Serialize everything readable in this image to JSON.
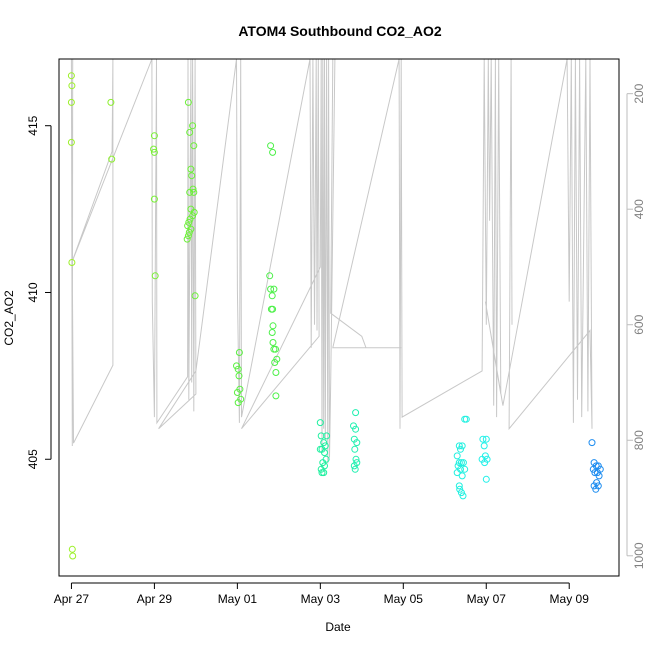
{
  "chart_data": {
    "type": "scatter",
    "title": "ATOM4 Southbound CO2_AO2",
    "xlabel": "Date",
    "ylabel": "CO2_AO2",
    "xlim": [
      -0.3,
      13.2
    ],
    "ylim": [
      401.5,
      417.0
    ],
    "x_ticks": [
      {
        "value": 0,
        "label": "Apr 27"
      },
      {
        "value": 2,
        "label": "Apr 29"
      },
      {
        "value": 4,
        "label": "May 01"
      },
      {
        "value": 6,
        "label": "May 03"
      },
      {
        "value": 8,
        "label": "May 05"
      },
      {
        "value": 10,
        "label": "May 07"
      },
      {
        "value": 12,
        "label": "May 09"
      }
    ],
    "y_ticks": [
      405,
      410,
      415
    ],
    "right_axis": {
      "label": "",
      "lim": [
        1035,
        140
      ],
      "ticks": [
        200,
        400,
        600,
        800,
        1000
      ],
      "color": "#bebebe"
    },
    "profile_line_color": "#c8c8c8",
    "profile_line": [
      [
        0.0,
        140
      ],
      [
        0.01,
        505
      ],
      [
        0.02,
        810
      ],
      [
        0.03,
        140
      ],
      [
        0.02,
        505
      ],
      [
        0.05,
        805
      ],
      [
        1.0,
        670
      ],
      [
        1.0,
        140
      ],
      [
        0.98,
        300
      ],
      [
        0.02,
        490
      ],
      [
        1.94,
        140
      ],
      [
        1.95,
        560
      ],
      [
        2.0,
        760
      ],
      [
        2.05,
        140
      ],
      [
        2.06,
        770
      ],
      [
        2.8,
        690
      ],
      [
        2.81,
        140
      ],
      [
        2.83,
        730
      ],
      [
        2.88,
        140
      ],
      [
        2.9,
        700
      ],
      [
        2.92,
        140
      ],
      [
        2.95,
        750
      ],
      [
        2.98,
        140
      ],
      [
        3.0,
        720
      ],
      [
        2.1,
        780
      ],
      [
        3.0,
        680
      ],
      [
        3.98,
        140
      ],
      [
        4.0,
        540
      ],
      [
        4.05,
        770
      ],
      [
        4.08,
        140
      ],
      [
        4.1,
        760
      ],
      [
        5.75,
        140
      ],
      [
        5.78,
        640
      ],
      [
        5.82,
        140
      ],
      [
        5.86,
        600
      ],
      [
        5.9,
        140
      ],
      [
        5.92,
        610
      ],
      [
        5.95,
        140
      ],
      [
        5.97,
        620
      ],
      [
        4.1,
        780
      ],
      [
        6.0,
        500
      ],
      [
        6.02,
        140
      ],
      [
        6.04,
        820
      ],
      [
        6.06,
        140
      ],
      [
        6.08,
        780
      ],
      [
        6.1,
        140
      ],
      [
        6.12,
        800
      ],
      [
        6.15,
        140
      ],
      [
        6.18,
        840
      ],
      [
        6.2,
        140
      ],
      [
        6.22,
        830
      ],
      [
        6.25,
        700
      ],
      [
        6.35,
        140
      ],
      [
        6.3,
        140
      ],
      [
        6.25,
        580
      ],
      [
        7.0,
        620
      ],
      [
        7.1,
        640
      ],
      [
        7.95,
        640
      ],
      [
        6.3,
        640
      ],
      [
        7.9,
        140
      ],
      [
        7.92,
        780
      ],
      [
        7.95,
        140
      ],
      [
        7.97,
        760
      ],
      [
        9.9,
        680
      ],
      [
        9.95,
        140
      ],
      [
        10.0,
        600
      ],
      [
        10.05,
        140
      ],
      [
        10.08,
        420
      ],
      [
        10.12,
        140
      ],
      [
        10.18,
        740
      ],
      [
        10.22,
        140
      ],
      [
        10.25,
        760
      ],
      [
        10.3,
        140
      ],
      [
        10.35,
        720
      ],
      [
        9.98,
        560
      ],
      [
        10.4,
        740
      ],
      [
        11.95,
        140
      ],
      [
        12.0,
        560
      ],
      [
        12.05,
        140
      ],
      [
        12.1,
        770
      ],
      [
        12.15,
        140
      ],
      [
        12.2,
        730
      ],
      [
        12.25,
        140
      ],
      [
        12.3,
        760
      ],
      [
        12.4,
        140
      ],
      [
        12.45,
        750
      ],
      [
        12.5,
        140
      ],
      [
        12.55,
        780
      ],
      [
        12.5,
        610
      ],
      [
        10.55,
        780
      ],
      [
        10.6,
        140
      ],
      [
        10.62,
        600
      ]
    ],
    "series": [
      {
        "name": "points",
        "points": [
          {
            "x": 0.0,
            "y": 416.5,
            "c": "#9cf028"
          },
          {
            "x": 0.01,
            "y": 416.2,
            "c": "#9cf028"
          },
          {
            "x": 0.0,
            "y": 415.7,
            "c": "#9cf028"
          },
          {
            "x": 0.0,
            "y": 414.5,
            "c": "#9cf028"
          },
          {
            "x": 0.01,
            "y": 410.9,
            "c": "#9cf028"
          },
          {
            "x": 0.02,
            "y": 402.3,
            "c": "#9cf028"
          },
          {
            "x": 0.03,
            "y": 402.1,
            "c": "#9cf028"
          },
          {
            "x": 0.95,
            "y": 415.7,
            "c": "#8cf02c"
          },
          {
            "x": 0.97,
            "y": 414.0,
            "c": "#8cf02c"
          },
          {
            "x": 2.0,
            "y": 414.7,
            "c": "#78f034"
          },
          {
            "x": 1.98,
            "y": 414.3,
            "c": "#78f034"
          },
          {
            "x": 2.0,
            "y": 414.2,
            "c": "#78f034"
          },
          {
            "x": 2.0,
            "y": 412.8,
            "c": "#78f034"
          },
          {
            "x": 2.02,
            "y": 410.5,
            "c": "#78f034"
          },
          {
            "x": 2.82,
            "y": 415.7,
            "c": "#6cf038"
          },
          {
            "x": 2.85,
            "y": 414.8,
            "c": "#6cf038"
          },
          {
            "x": 2.92,
            "y": 415.0,
            "c": "#6cf038"
          },
          {
            "x": 2.95,
            "y": 414.4,
            "c": "#6cf038"
          },
          {
            "x": 2.88,
            "y": 413.7,
            "c": "#6cf038"
          },
          {
            "x": 2.9,
            "y": 413.5,
            "c": "#6cf038"
          },
          {
            "x": 2.85,
            "y": 413.0,
            "c": "#6cf038"
          },
          {
            "x": 2.93,
            "y": 413.1,
            "c": "#6cf038"
          },
          {
            "x": 2.95,
            "y": 413.0,
            "c": "#6cf038"
          },
          {
            "x": 2.88,
            "y": 412.5,
            "c": "#6cf038"
          },
          {
            "x": 2.92,
            "y": 412.3,
            "c": "#6cf038"
          },
          {
            "x": 2.96,
            "y": 412.4,
            "c": "#6cf038"
          },
          {
            "x": 2.86,
            "y": 412.2,
            "c": "#6cf038"
          },
          {
            "x": 2.8,
            "y": 412.0,
            "c": "#6cf038"
          },
          {
            "x": 2.84,
            "y": 411.8,
            "c": "#6cf038"
          },
          {
            "x": 2.82,
            "y": 411.7,
            "c": "#6cf038"
          },
          {
            "x": 2.79,
            "y": 411.6,
            "c": "#6cf038"
          },
          {
            "x": 2.88,
            "y": 411.9,
            "c": "#6cf038"
          },
          {
            "x": 2.83,
            "y": 412.1,
            "c": "#6cf038"
          },
          {
            "x": 2.98,
            "y": 409.9,
            "c": "#6cf038"
          },
          {
            "x": 4.05,
            "y": 408.2,
            "c": "#5af040"
          },
          {
            "x": 3.98,
            "y": 407.8,
            "c": "#5af040"
          },
          {
            "x": 4.02,
            "y": 407.7,
            "c": "#5af040"
          },
          {
            "x": 4.04,
            "y": 407.5,
            "c": "#5af040"
          },
          {
            "x": 4.06,
            "y": 407.1,
            "c": "#5af040"
          },
          {
            "x": 4.0,
            "y": 407.0,
            "c": "#5af040"
          },
          {
            "x": 4.08,
            "y": 406.8,
            "c": "#5af040"
          },
          {
            "x": 4.02,
            "y": 406.7,
            "c": "#5af040"
          },
          {
            "x": 4.8,
            "y": 414.4,
            "c": "#4cf048"
          },
          {
            "x": 4.85,
            "y": 414.2,
            "c": "#4cf048"
          },
          {
            "x": 4.78,
            "y": 410.5,
            "c": "#4cf048"
          },
          {
            "x": 4.8,
            "y": 410.1,
            "c": "#4cf048"
          },
          {
            "x": 4.88,
            "y": 410.1,
            "c": "#4cf048"
          },
          {
            "x": 4.84,
            "y": 409.9,
            "c": "#4cf048"
          },
          {
            "x": 4.82,
            "y": 409.5,
            "c": "#4cf048"
          },
          {
            "x": 4.85,
            "y": 409.5,
            "c": "#4cf048"
          },
          {
            "x": 4.86,
            "y": 409.0,
            "c": "#4cf048"
          },
          {
            "x": 4.84,
            "y": 408.8,
            "c": "#4cf048"
          },
          {
            "x": 4.86,
            "y": 408.5,
            "c": "#4cf048"
          },
          {
            "x": 4.88,
            "y": 408.3,
            "c": "#4cf048"
          },
          {
            "x": 4.92,
            "y": 408.3,
            "c": "#4cf048"
          },
          {
            "x": 4.95,
            "y": 408.0,
            "c": "#4cf048"
          },
          {
            "x": 4.9,
            "y": 407.9,
            "c": "#4cf048"
          },
          {
            "x": 4.93,
            "y": 407.6,
            "c": "#4cf048"
          },
          {
            "x": 4.93,
            "y": 406.9,
            "c": "#4cf048"
          },
          {
            "x": 6.0,
            "y": 406.1,
            "c": "#20f0a0"
          },
          {
            "x": 6.02,
            "y": 405.7,
            "c": "#20f0a0"
          },
          {
            "x": 6.15,
            "y": 405.7,
            "c": "#20f0a0"
          },
          {
            "x": 6.08,
            "y": 405.5,
            "c": "#20f0a0"
          },
          {
            "x": 6.12,
            "y": 405.4,
            "c": "#20f0a0"
          },
          {
            "x": 6.04,
            "y": 405.3,
            "c": "#20f0a0"
          },
          {
            "x": 6.0,
            "y": 405.3,
            "c": "#20f0a0"
          },
          {
            "x": 6.1,
            "y": 405.2,
            "c": "#20f0a0"
          },
          {
            "x": 6.14,
            "y": 405.0,
            "c": "#20f0a0"
          },
          {
            "x": 6.06,
            "y": 404.9,
            "c": "#20f0a0"
          },
          {
            "x": 6.1,
            "y": 404.8,
            "c": "#20f0a0"
          },
          {
            "x": 6.02,
            "y": 404.7,
            "c": "#20f0a0"
          },
          {
            "x": 6.08,
            "y": 404.6,
            "c": "#20f0a0"
          },
          {
            "x": 6.04,
            "y": 404.6,
            "c": "#20f0a0"
          },
          {
            "x": 6.85,
            "y": 406.4,
            "c": "#20f0b0"
          },
          {
            "x": 6.8,
            "y": 406.0,
            "c": "#20f0b0"
          },
          {
            "x": 6.85,
            "y": 405.9,
            "c": "#20f0b0"
          },
          {
            "x": 6.82,
            "y": 405.6,
            "c": "#20f0b0"
          },
          {
            "x": 6.88,
            "y": 405.5,
            "c": "#20f0b0"
          },
          {
            "x": 6.83,
            "y": 405.3,
            "c": "#20f0b0"
          },
          {
            "x": 6.86,
            "y": 405.0,
            "c": "#20f0b0"
          },
          {
            "x": 6.88,
            "y": 404.9,
            "c": "#20f0b0"
          },
          {
            "x": 6.82,
            "y": 404.8,
            "c": "#20f0b0"
          },
          {
            "x": 6.84,
            "y": 404.7,
            "c": "#20f0b0"
          },
          {
            "x": 9.35,
            "y": 405.4,
            "c": "#20f0e0"
          },
          {
            "x": 9.38,
            "y": 405.3,
            "c": "#20f0e0"
          },
          {
            "x": 9.42,
            "y": 405.4,
            "c": "#20f0e0"
          },
          {
            "x": 9.3,
            "y": 405.1,
            "c": "#20f0e0"
          },
          {
            "x": 9.35,
            "y": 404.9,
            "c": "#20f0e0"
          },
          {
            "x": 9.4,
            "y": 404.9,
            "c": "#20f0e0"
          },
          {
            "x": 9.45,
            "y": 404.9,
            "c": "#20f0e0"
          },
          {
            "x": 9.32,
            "y": 404.8,
            "c": "#20f0e0"
          },
          {
            "x": 9.38,
            "y": 404.7,
            "c": "#20f0e0"
          },
          {
            "x": 9.48,
            "y": 404.7,
            "c": "#20f0e0"
          },
          {
            "x": 9.3,
            "y": 404.6,
            "c": "#20f0e0"
          },
          {
            "x": 9.42,
            "y": 404.5,
            "c": "#20f0e0"
          },
          {
            "x": 9.36,
            "y": 404.1,
            "c": "#20f0e0"
          },
          {
            "x": 9.4,
            "y": 404.0,
            "c": "#20f0e0"
          },
          {
            "x": 9.44,
            "y": 403.9,
            "c": "#20f0e0"
          },
          {
            "x": 9.48,
            "y": 406.2,
            "c": "#20f0e0"
          },
          {
            "x": 9.52,
            "y": 406.2,
            "c": "#20f0e0"
          },
          {
            "x": 9.35,
            "y": 404.2,
            "c": "#20f0e0"
          },
          {
            "x": 9.92,
            "y": 405.6,
            "c": "#20f0e8"
          },
          {
            "x": 10.0,
            "y": 405.6,
            "c": "#20f0e8"
          },
          {
            "x": 9.95,
            "y": 405.4,
            "c": "#20f0e8"
          },
          {
            "x": 9.98,
            "y": 405.1,
            "c": "#20f0e8"
          },
          {
            "x": 9.9,
            "y": 405.0,
            "c": "#20f0e8"
          },
          {
            "x": 10.02,
            "y": 405.0,
            "c": "#20f0e8"
          },
          {
            "x": 9.96,
            "y": 404.9,
            "c": "#20f0e8"
          },
          {
            "x": 10.0,
            "y": 404.4,
            "c": "#20f0e8"
          },
          {
            "x": 12.55,
            "y": 405.5,
            "c": "#1c8cf0"
          },
          {
            "x": 12.6,
            "y": 404.9,
            "c": "#1c8cf0"
          },
          {
            "x": 12.65,
            "y": 404.8,
            "c": "#1c8cf0"
          },
          {
            "x": 12.7,
            "y": 404.8,
            "c": "#1c8cf0"
          },
          {
            "x": 12.58,
            "y": 404.7,
            "c": "#1c8cf0"
          },
          {
            "x": 12.75,
            "y": 404.7,
            "c": "#1c8cf0"
          },
          {
            "x": 12.62,
            "y": 404.6,
            "c": "#1c8cf0"
          },
          {
            "x": 12.68,
            "y": 404.6,
            "c": "#1c8cf0"
          },
          {
            "x": 12.72,
            "y": 404.5,
            "c": "#1c8cf0"
          },
          {
            "x": 12.66,
            "y": 404.3,
            "c": "#1c8cf0"
          },
          {
            "x": 12.6,
            "y": 404.2,
            "c": "#1c8cf0"
          },
          {
            "x": 12.7,
            "y": 404.2,
            "c": "#1c8cf0"
          },
          {
            "x": 12.64,
            "y": 404.1,
            "c": "#1c8cf0"
          }
        ]
      }
    ]
  }
}
